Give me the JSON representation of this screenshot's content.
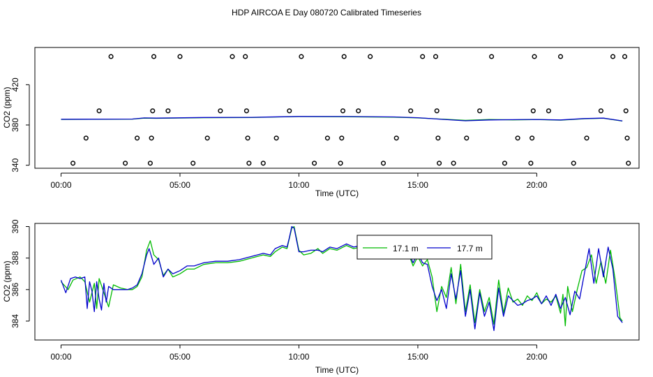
{
  "title": "HDP AIRCOA E  Day 080720  Calibrated Timeseries",
  "colors": {
    "green": "#00bb00",
    "blue": "#0000cc",
    "axis": "#000000"
  },
  "chart_data": [
    {
      "type": "line+scatter",
      "xlabel": "Time (UTC)",
      "ylabel": "CO2 (ppm)",
      "xlim": [
        -1.1,
        24.3
      ],
      "ylim": [
        337,
        457
      ],
      "xticks": [
        0,
        5,
        10,
        15,
        20
      ],
      "xtick_labels": [
        "00:00",
        "05:00",
        "10:00",
        "15:00",
        "20:00"
      ],
      "yticks": [
        340,
        380,
        420
      ],
      "ytick_labels": [
        "340",
        "380",
        "420"
      ],
      "grid": false,
      "calibration_points": [
        {
          "x": 0.5,
          "y": 342
        },
        {
          "x": 1.05,
          "y": 367
        },
        {
          "x": 1.6,
          "y": 394
        },
        {
          "x": 2.1,
          "y": 448
        },
        {
          "x": 2.7,
          "y": 342
        },
        {
          "x": 3.2,
          "y": 367
        },
        {
          "x": 3.75,
          "y": 342
        },
        {
          "x": 3.8,
          "y": 367
        },
        {
          "x": 3.85,
          "y": 394
        },
        {
          "x": 3.9,
          "y": 448
        },
        {
          "x": 4.5,
          "y": 394
        },
        {
          "x": 5.0,
          "y": 448
        },
        {
          "x": 5.55,
          "y": 342
        },
        {
          "x": 6.15,
          "y": 367
        },
        {
          "x": 6.7,
          "y": 394
        },
        {
          "x": 7.2,
          "y": 448
        },
        {
          "x": 7.75,
          "y": 448
        },
        {
          "x": 7.8,
          "y": 394
        },
        {
          "x": 7.85,
          "y": 367
        },
        {
          "x": 7.9,
          "y": 342
        },
        {
          "x": 8.5,
          "y": 342
        },
        {
          "x": 9.05,
          "y": 367
        },
        {
          "x": 9.6,
          "y": 394
        },
        {
          "x": 10.1,
          "y": 448
        },
        {
          "x": 10.65,
          "y": 342
        },
        {
          "x": 11.2,
          "y": 367
        },
        {
          "x": 11.75,
          "y": 342
        },
        {
          "x": 11.8,
          "y": 367
        },
        {
          "x": 11.85,
          "y": 394
        },
        {
          "x": 11.9,
          "y": 448
        },
        {
          "x": 12.5,
          "y": 394
        },
        {
          "x": 13.0,
          "y": 448
        },
        {
          "x": 13.55,
          "y": 342
        },
        {
          "x": 14.1,
          "y": 367
        },
        {
          "x": 14.7,
          "y": 394
        },
        {
          "x": 15.2,
          "y": 448
        },
        {
          "x": 15.75,
          "y": 448
        },
        {
          "x": 15.8,
          "y": 394
        },
        {
          "x": 15.85,
          "y": 367
        },
        {
          "x": 15.9,
          "y": 342
        },
        {
          "x": 16.5,
          "y": 342
        },
        {
          "x": 17.05,
          "y": 367
        },
        {
          "x": 17.6,
          "y": 394
        },
        {
          "x": 18.1,
          "y": 448
        },
        {
          "x": 18.65,
          "y": 342
        },
        {
          "x": 19.2,
          "y": 367
        },
        {
          "x": 19.75,
          "y": 342
        },
        {
          "x": 19.8,
          "y": 367
        },
        {
          "x": 19.85,
          "y": 394
        },
        {
          "x": 19.9,
          "y": 448
        },
        {
          "x": 20.5,
          "y": 394
        },
        {
          "x": 21.0,
          "y": 448
        },
        {
          "x": 21.55,
          "y": 342
        },
        {
          "x": 22.1,
          "y": 367
        },
        {
          "x": 22.7,
          "y": 394
        },
        {
          "x": 23.2,
          "y": 448
        },
        {
          "x": 23.7,
          "y": 448
        },
        {
          "x": 23.75,
          "y": 394
        },
        {
          "x": 23.8,
          "y": 367
        },
        {
          "x": 23.85,
          "y": 342
        }
      ],
      "series": [
        {
          "color": "#00bb00",
          "x": [
            0,
            3,
            3.5,
            4,
            6,
            8,
            10,
            12,
            14,
            15,
            16,
            17,
            18,
            19,
            20,
            21,
            22,
            22.8,
            23.6
          ],
          "y": [
            385.5,
            385.8,
            386.8,
            386.6,
            387.2,
            387.4,
            388.3,
            388.2,
            387.8,
            387,
            385.8,
            384.6,
            385.5,
            385.1,
            385.4,
            384.8,
            386.2,
            386.7,
            383.9
          ]
        },
        {
          "color": "#0000cc",
          "x": [
            0,
            3,
            3.5,
            4,
            6,
            8,
            10,
            12,
            14,
            15,
            16,
            17,
            18,
            19,
            20,
            21,
            22,
            22.8,
            23.6
          ],
          "y": [
            385.7,
            385.9,
            387.0,
            386.8,
            387.4,
            387.6,
            388.5,
            388.4,
            388.0,
            387.2,
            385.6,
            384.2,
            385.0,
            385.3,
            385.5,
            385.0,
            386.4,
            386.8,
            384.0
          ]
        }
      ]
    },
    {
      "type": "line",
      "xlabel": "Time (UTC)",
      "ylabel": "CO2 (ppm)",
      "xlim": [
        -1.1,
        24.3
      ],
      "ylim": [
        382.8,
        390.2
      ],
      "xticks": [
        0,
        5,
        10,
        15,
        20
      ],
      "xtick_labels": [
        "00:00",
        "05:00",
        "10:00",
        "15:00",
        "20:00"
      ],
      "yticks": [
        384,
        386,
        388,
        390
      ],
      "ytick_labels": [
        "384",
        "386",
        "388",
        "390"
      ],
      "grid": false,
      "legend": {
        "placement": "top-center"
      },
      "series": [
        {
          "name": "17.1 m",
          "color": "#00bb00",
          "x": [
            0,
            0.3,
            0.5,
            0.8,
            1.0,
            1.2,
            1.4,
            1.5,
            1.6,
            1.8,
            2.0,
            2.2,
            2.5,
            2.8,
            3.0,
            3.2,
            3.4,
            3.6,
            3.75,
            3.9,
            4.1,
            4.3,
            4.5,
            4.7,
            5.0,
            5.3,
            5.6,
            6.0,
            6.5,
            7.0,
            7.5,
            8.0,
            8.5,
            8.8,
            9.0,
            9.3,
            9.5,
            9.7,
            9.8,
            10.0,
            10.2,
            10.5,
            10.8,
            11.0,
            11.3,
            11.6,
            12.0,
            12.3,
            12.6,
            12.9,
            13.2,
            13.5,
            13.8,
            14.0,
            14.3,
            14.6,
            14.8,
            15.0,
            15.2,
            15.4,
            15.6,
            15.8,
            16.0,
            16.2,
            16.4,
            16.6,
            16.8,
            17.0,
            17.2,
            17.4,
            17.6,
            17.8,
            18.0,
            18.2,
            18.4,
            18.6,
            18.8,
            19.0,
            19.2,
            19.4,
            19.6,
            19.8,
            20.0,
            20.2,
            20.4,
            20.6,
            20.8,
            21.0,
            21.1,
            21.2,
            21.3,
            21.5,
            21.7,
            21.9,
            22.1,
            22.3,
            22.5,
            22.7,
            22.9,
            23.1,
            23.3,
            23.5,
            23.6
          ],
          "y": [
            386.5,
            386.0,
            386.6,
            386.8,
            386.5,
            385.2,
            386.4,
            384.8,
            386.7,
            385.8,
            384.9,
            386.3,
            386.1,
            386.0,
            386.0,
            386.2,
            386.8,
            388.5,
            389.1,
            388.2,
            387.9,
            386.9,
            387.3,
            386.8,
            387.0,
            387.3,
            387.3,
            387.6,
            387.7,
            387.7,
            387.8,
            388.0,
            388.2,
            388.1,
            388.4,
            388.7,
            388.6,
            389.9,
            390.0,
            388.5,
            388.2,
            388.3,
            388.6,
            388.3,
            388.6,
            388.5,
            388.8,
            388.6,
            388.7,
            388.9,
            388.8,
            388.8,
            388.6,
            388.5,
            388.4,
            388.3,
            387.5,
            388.1,
            387.5,
            387.9,
            386.8,
            384.6,
            386.2,
            385.5,
            387.4,
            385.1,
            387.6,
            384.6,
            386.3,
            383.9,
            386.0,
            384.6,
            385.5,
            383.8,
            386.6,
            384.5,
            386.1,
            385.2,
            385.4,
            385.0,
            385.6,
            385.3,
            385.8,
            385.1,
            385.4,
            385.2,
            385.6,
            384.5,
            385.7,
            383.7,
            386.2,
            384.6,
            386.0,
            387.2,
            387.4,
            388.2,
            386.4,
            387.8,
            386.4,
            388.5,
            386.6,
            384.2,
            384.0
          ]
        },
        {
          "name": "17.7 m",
          "color": "#0000cc",
          "x": [
            0,
            0.2,
            0.4,
            0.6,
            0.8,
            1.0,
            1.1,
            1.2,
            1.3,
            1.4,
            1.5,
            1.6,
            1.7,
            1.8,
            1.9,
            2.0,
            2.2,
            2.5,
            2.8,
            3.0,
            3.2,
            3.4,
            3.6,
            3.7,
            3.9,
            4.1,
            4.3,
            4.5,
            4.7,
            5.0,
            5.3,
            5.6,
            6.0,
            6.5,
            7.0,
            7.5,
            8.0,
            8.5,
            8.8,
            9.0,
            9.3,
            9.5,
            9.6,
            9.7,
            9.8,
            10.0,
            10.2,
            10.5,
            10.8,
            11.0,
            11.3,
            11.6,
            12.0,
            12.3,
            12.6,
            12.9,
            13.2,
            13.5,
            13.8,
            14.0,
            14.3,
            14.6,
            14.8,
            15.0,
            15.2,
            15.4,
            15.6,
            15.8,
            16.0,
            16.2,
            16.4,
            16.6,
            16.8,
            17.0,
            17.2,
            17.4,
            17.6,
            17.8,
            18.0,
            18.2,
            18.4,
            18.6,
            18.8,
            19.0,
            19.2,
            19.4,
            19.6,
            19.8,
            20.0,
            20.2,
            20.4,
            20.6,
            20.8,
            21.0,
            21.2,
            21.4,
            21.6,
            21.8,
            22.0,
            22.2,
            22.4,
            22.6,
            22.8,
            23.0,
            23.2,
            23.4,
            23.6
          ],
          "y": [
            386.6,
            385.8,
            386.7,
            386.8,
            386.7,
            386.8,
            384.8,
            386.5,
            385.9,
            384.6,
            386.5,
            385.4,
            384.7,
            386.4,
            385.2,
            386.2,
            386.0,
            386.0,
            386.0,
            386.1,
            386.3,
            387.0,
            388.2,
            388.6,
            387.6,
            388.0,
            386.8,
            387.3,
            387.0,
            387.2,
            387.5,
            387.5,
            387.7,
            387.8,
            387.8,
            387.9,
            388.1,
            388.3,
            388.2,
            388.6,
            388.8,
            388.7,
            389.3,
            390.0,
            389.9,
            388.4,
            388.4,
            388.5,
            388.5,
            388.4,
            388.7,
            388.6,
            388.9,
            388.7,
            388.8,
            389.0,
            388.9,
            388.9,
            388.7,
            388.6,
            388.5,
            388.4,
            387.7,
            388.3,
            387.7,
            387.6,
            386.2,
            385.3,
            386.0,
            384.8,
            387.0,
            385.4,
            387.2,
            384.3,
            386.0,
            383.5,
            385.8,
            384.3,
            385.2,
            383.4,
            386.1,
            384.3,
            385.6,
            385.3,
            385.0,
            385.1,
            385.3,
            385.4,
            385.6,
            385.1,
            385.6,
            385.0,
            385.7,
            384.8,
            385.5,
            384.4,
            385.9,
            385.4,
            387.0,
            388.6,
            386.4,
            388.6,
            386.8,
            388.7,
            387.3,
            384.3,
            383.9
          ]
        }
      ]
    }
  ]
}
